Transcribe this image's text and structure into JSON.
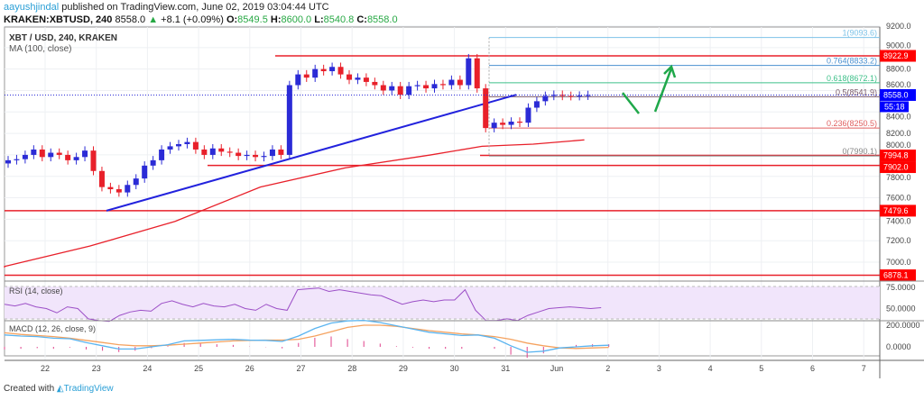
{
  "header": {
    "user": "aayushjindal",
    "published": "published on TradingView.com, June 02, 2019 03:04:44 UTC",
    "symbol": "KRAKEN:XBTUSD, 240",
    "last": "8558.0",
    "change": "+8.1 (+0.09%)",
    "o_label": "O:",
    "o": "8549.5",
    "h_label": "H:",
    "h": "8600.0",
    "l_label": "L:",
    "l": "8540.8",
    "c_label": "C:",
    "c": "8558.0"
  },
  "footer": {
    "created": "Created with",
    "brand": "TradingView"
  },
  "colors": {
    "up": "#2b2bd6",
    "down": "#e8202a",
    "ma": "#e8202a",
    "trend": "#2222dd",
    "level": "#e8202a",
    "rsi": "#9c4fc7",
    "macd": "#5ab4f0",
    "signal": "#f5a25f",
    "hist": "#e0408a",
    "arrow": "#1fa84a"
  },
  "chart_data": [
    {
      "type": "candlestick",
      "title": "XBT / USD, 240, KRAKEN",
      "indicator": "MA (100, close)",
      "x_ticks": [
        "22",
        "23",
        "24",
        "25",
        "26",
        "27",
        "28",
        "29",
        "30",
        "31",
        "Jun",
        "2",
        "3",
        "4",
        "5",
        "6",
        "7"
      ],
      "y_ticks": [
        "9200.0",
        "9000.0",
        "8800.0",
        "8600.0",
        "8400.0",
        "8200.0",
        "8000.0",
        "7800.0",
        "7600.0",
        "7400.0",
        "7200.0",
        "7000.0"
      ],
      "ylim": [
        6820,
        9260
      ],
      "closes": [
        7950,
        7960,
        8000,
        8050,
        7980,
        8020,
        8000,
        7950,
        7980,
        8040,
        7850,
        7700,
        7680,
        7650,
        7720,
        7780,
        7900,
        7950,
        8050,
        8080,
        8100,
        8120,
        8050,
        8000,
        8060,
        8030,
        8020,
        7990,
        8000,
        7980,
        7990,
        8050,
        8000,
        8650,
        8750,
        8720,
        8800,
        8780,
        8820,
        8750,
        8700,
        8720,
        8680,
        8650,
        8600,
        8640,
        8560,
        8640,
        8650,
        8620,
        8660,
        8650,
        8700,
        8650,
        8900,
        8620,
        8250,
        8300,
        8280,
        8310,
        8300,
        8440,
        8500,
        8550,
        8560,
        8550,
        8548,
        8552,
        8558
      ],
      "ma100": [
        [
          0,
          6960
        ],
        [
          10,
          7150
        ],
        [
          20,
          7380
        ],
        [
          30,
          7700
        ],
        [
          40,
          7880
        ],
        [
          50,
          8000
        ],
        [
          56,
          8080
        ],
        [
          62,
          8100
        ],
        [
          68,
          8140
        ]
      ],
      "price_levels": [
        "8922.9",
        "7994.8",
        "7902.0",
        "7479.6",
        "6878.1"
      ],
      "last_price": "8558.0",
      "countdown": "55:18",
      "fib": [
        {
          "label": "1(9093.6)",
          "v": 9093.6,
          "color": "#7ec3e8"
        },
        {
          "label": "0.764(8833.2)",
          "v": 8833.2,
          "color": "#4a90d0"
        },
        {
          "label": "0.618(8672.1)",
          "v": 8672.1,
          "color": "#3fc08a"
        },
        {
          "label": "0.5(8541.9)",
          "v": 8541.9,
          "color": "#7a5a6a"
        },
        {
          "label": "0.236(8250.5)",
          "v": 8250.5,
          "color": "#e06060"
        },
        {
          "label": "0(7990.1)",
          "v": 7990.1,
          "color": "#888888"
        }
      ]
    },
    {
      "type": "line",
      "title": "RSI (14, close)",
      "y_ticks": [
        "75.0000",
        "50.0000"
      ],
      "values": [
        55,
        53,
        56,
        52,
        50,
        45,
        52,
        50,
        38,
        36,
        35,
        42,
        46,
        48,
        47,
        56,
        59,
        55,
        52,
        56,
        53,
        52,
        55,
        50,
        48,
        55,
        50,
        48,
        72,
        73,
        74,
        70,
        72,
        70,
        68,
        66,
        65,
        60,
        55,
        58,
        60,
        58,
        60,
        60,
        72,
        48,
        36,
        36,
        38,
        36,
        42,
        46,
        50,
        51,
        52,
        51,
        50,
        51
      ]
    },
    {
      "type": "line",
      "title": "MACD (12, 26, close, 9)",
      "y_ticks": [
        "200.0000",
        "0.0000"
      ],
      "macd": [
        110,
        100,
        95,
        80,
        75,
        40,
        10,
        -20,
        -20,
        0,
        20,
        55,
        60,
        65,
        70,
        62,
        60,
        50,
        100,
        170,
        220,
        240,
        245,
        225,
        195,
        165,
        135,
        120,
        105,
        110,
        80,
        10,
        -50,
        -40,
        -10,
        0,
        10,
        15
      ],
      "signal": [
        130,
        115,
        105,
        95,
        80,
        60,
        40,
        20,
        10,
        10,
        15,
        25,
        35,
        45,
        55,
        60,
        62,
        62,
        70,
        100,
        140,
        180,
        200,
        200,
        190,
        170,
        150,
        135,
        120,
        110,
        95,
        70,
        35,
        10,
        -10,
        -15,
        -10,
        -5
      ]
    }
  ]
}
